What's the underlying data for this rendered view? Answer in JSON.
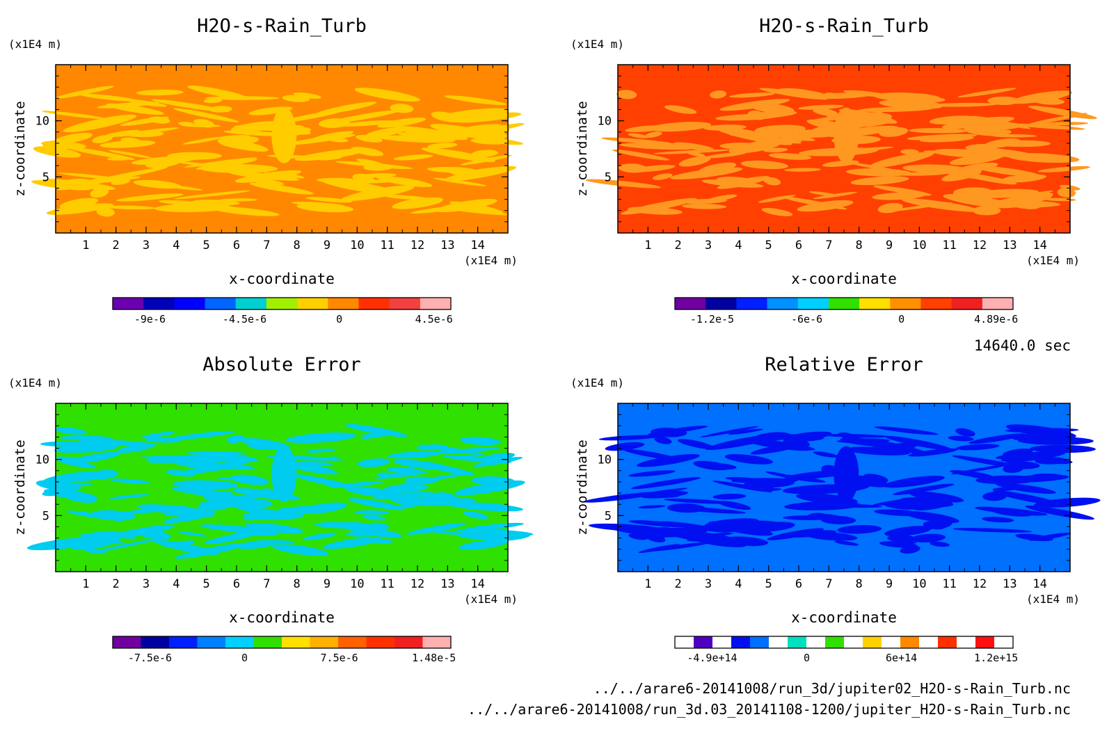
{
  "time_label": "14640.0 sec",
  "files": [
    "../../arare6-20141008/run_3d/jupiter02_H2O-s-Rain_Turb.nc",
    "../../arare6-20141008/run_3d.03_20141108-1200/jupiter_H2O-s-Rain_Turb.nc"
  ],
  "chart_data": [
    {
      "type": "heatmap",
      "title": "H2O-s-Rain_Turb",
      "xlabel": "x-coordinate",
      "ylabel": "z-coordinate",
      "x_unit": "(x1E4 m)",
      "y_unit": "(x1E4 m)",
      "xlim": [
        0,
        15
      ],
      "ylim": [
        0,
        15
      ],
      "x_ticks": [
        1,
        2,
        3,
        4,
        5,
        6,
        7,
        8,
        9,
        10,
        11,
        12,
        13,
        14
      ],
      "y_ticks": [
        5,
        10
      ],
      "background_color": "#ff8800",
      "pattern_color": "#ffcc00",
      "colorbar": {
        "colors": [
          "#6a00b0",
          "#0000b8",
          "#0000ff",
          "#0064ff",
          "#00d0d0",
          "#a0f000",
          "#ffd000",
          "#ff8800",
          "#ff3000",
          "#f04040",
          "#ffb0b0"
        ],
        "tick_labels": [
          "-9e-6",
          "-4.5e-6",
          "0",
          "4.5e-6"
        ]
      }
    },
    {
      "type": "heatmap",
      "title": "H2O-s-Rain_Turb",
      "xlabel": "x-coordinate",
      "ylabel": "z-coordinate",
      "x_unit": "(x1E4 m)",
      "y_unit": "(x1E4 m)",
      "xlim": [
        0,
        15
      ],
      "ylim": [
        0,
        15
      ],
      "x_ticks": [
        1,
        2,
        3,
        4,
        5,
        6,
        7,
        8,
        9,
        10,
        11,
        12,
        13,
        14
      ],
      "y_ticks": [
        5,
        10
      ],
      "background_color": "#ff4000",
      "pattern_color": "#ff9820",
      "colorbar": {
        "colors": [
          "#7000a0",
          "#0000a0",
          "#0020ff",
          "#0090ff",
          "#00d0ff",
          "#30e000",
          "#ffe000",
          "#ff9000",
          "#ff4000",
          "#f02020",
          "#ffb0b0"
        ],
        "tick_labels": [
          "-1.2e-5",
          "-6e-6",
          "0",
          "4.89e-6"
        ]
      }
    },
    {
      "type": "heatmap",
      "title": "Absolute Error",
      "xlabel": "x-coordinate",
      "ylabel": "z-coordinate",
      "x_unit": "(x1E4 m)",
      "y_unit": "(x1E4 m)",
      "xlim": [
        0,
        15
      ],
      "ylim": [
        0,
        15
      ],
      "x_ticks": [
        1,
        2,
        3,
        4,
        5,
        6,
        7,
        8,
        9,
        10,
        11,
        12,
        13,
        14
      ],
      "y_ticks": [
        5,
        10
      ],
      "background_color": "#30e000",
      "pattern_color": "#00ccf0",
      "colorbar": {
        "colors": [
          "#7000a0",
          "#0000a0",
          "#0020ff",
          "#0080ff",
          "#00d0ff",
          "#30e000",
          "#ffe000",
          "#ffb000",
          "#ff6000",
          "#ff3000",
          "#f02020",
          "#ffb0b0"
        ],
        "tick_labels": [
          "-7.5e-6",
          "0",
          "7.5e-6",
          "1.48e-5"
        ]
      }
    },
    {
      "type": "heatmap",
      "title": "Relative Error",
      "xlabel": "x-coordinate",
      "ylabel": "z-coordinate",
      "x_unit": "(x1E4 m)",
      "y_unit": "(x1E4 m)",
      "xlim": [
        0,
        15
      ],
      "ylim": [
        0,
        15
      ],
      "x_ticks": [
        1,
        2,
        3,
        4,
        5,
        6,
        7,
        8,
        9,
        10,
        11,
        12,
        13,
        14
      ],
      "y_ticks": [
        5,
        10
      ],
      "background_color": "#0070ff",
      "pattern_color": "#0010f0",
      "colorbar": {
        "colors": [
          "#ffffff",
          "#5000c0",
          "#ffffff",
          "#0010f0",
          "#0070ff",
          "#ffffff",
          "#00e0c0",
          "#ffffff",
          "#30e000",
          "#ffffff",
          "#ffd000",
          "#ffffff",
          "#ff8800",
          "#ffffff",
          "#ff3000",
          "#ffffff",
          "#ff1010",
          "#ffffff"
        ],
        "tick_labels": [
          "-4.9e+14",
          "0",
          "6e+14",
          "1.2e+15"
        ]
      }
    }
  ]
}
